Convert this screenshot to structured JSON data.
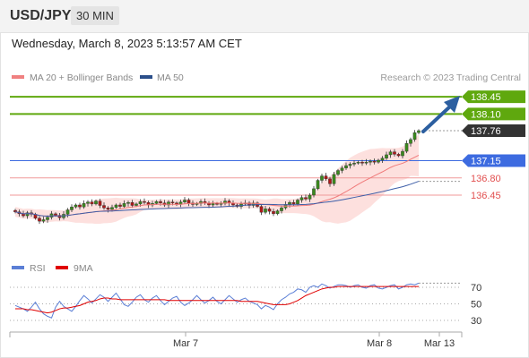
{
  "header": {
    "symbol": "USD/JPY",
    "timeframe": "30 MIN"
  },
  "datetime": "Wednesday, March 8, 2023 5:13:57 AM CET",
  "legend": {
    "ma20_label": "MA 20 + Bollinger Bands",
    "ma50_label": "MA 50",
    "source": "Research © 2023 Trading Central"
  },
  "rsi_legend": {
    "rsi": "RSI",
    "ma": "9MA"
  },
  "colors": {
    "green": "#5fa80e",
    "blue": "#3d6be0",
    "red": "#e25050",
    "dark": "#333333",
    "arrow": "#2c5fa0"
  },
  "chart_data": [
    {
      "type": "candlestick",
      "title": "USD/JPY",
      "price_levels": [
        {
          "value": 138.45,
          "label": "138.45",
          "kind": "resistance"
        },
        {
          "value": 138.1,
          "label": "138.10",
          "kind": "resistance"
        },
        {
          "value": 137.76,
          "label": "137.76",
          "kind": "last"
        },
        {
          "value": 137.15,
          "label": "137.15",
          "kind": "pivot"
        },
        {
          "value": 136.8,
          "label": "136.80",
          "kind": "support"
        },
        {
          "value": 136.45,
          "label": "136.45",
          "kind": "support"
        }
      ],
      "x_ticks": [
        "Mar 7",
        "Mar 8",
        "Mar 13"
      ],
      "series": [
        {
          "name": "MA 20 + Bollinger Bands"
        },
        {
          "name": "MA 50"
        }
      ],
      "closes": [
        136.11,
        136.07,
        136.03,
        136.09,
        136.06,
        135.98,
        135.92,
        135.95,
        136.0,
        136.07,
        136.04,
        135.99,
        136.06,
        136.15,
        136.21,
        136.25,
        136.21,
        136.28,
        136.31,
        136.27,
        136.33,
        136.24,
        136.19,
        136.16,
        136.2,
        136.25,
        136.22,
        136.28,
        136.3,
        136.24,
        136.27,
        136.32,
        136.3,
        136.25,
        136.28,
        136.32,
        136.29,
        136.25,
        136.31,
        136.29,
        136.26,
        136.31,
        136.35,
        136.29,
        136.26,
        136.28,
        136.32,
        136.29,
        136.25,
        136.28,
        136.27,
        136.28,
        136.33,
        136.29,
        136.25,
        136.22,
        136.27,
        136.29,
        136.24,
        136.29,
        136.22,
        136.1,
        136.17,
        136.12,
        136.07,
        136.13,
        136.19,
        136.26,
        136.3,
        136.27,
        136.35,
        136.4,
        136.37,
        136.45,
        136.58,
        136.75,
        136.84,
        136.78,
        136.68,
        136.87,
        136.95,
        137.0,
        137.05,
        137.08,
        137.1,
        137.12,
        137.1,
        137.12,
        137.14,
        137.12,
        137.16,
        137.2,
        137.27,
        137.33,
        137.28,
        137.25,
        137.34,
        137.5,
        137.58,
        137.72,
        137.76
      ],
      "rsi": {
        "levels": [
          30,
          50,
          70
        ],
        "values": [
          48,
          46,
          44,
          41,
          46,
          52,
          44,
          38,
          35,
          33,
          46,
          53,
          47,
          44,
          41,
          47,
          54,
          60,
          56,
          51,
          56,
          61,
          58,
          53,
          58,
          63,
          56,
          49,
          47,
          52,
          58,
          61,
          55,
          52,
          57,
          60,
          54,
          49,
          53,
          57,
          59,
          52,
          48,
          51,
          55,
          60,
          55,
          51,
          54,
          58,
          53,
          50,
          55,
          60,
          56,
          52,
          55,
          57,
          53,
          51,
          49,
          44,
          48,
          46,
          43,
          50,
          55,
          58,
          62,
          64,
          68,
          67,
          64,
          70,
          72,
          70,
          74,
          72,
          69,
          71,
          73,
          73,
          72,
          70,
          72,
          73,
          70,
          69,
          72,
          73,
          69,
          68,
          70,
          72,
          73,
          68,
          70,
          73,
          74,
          73,
          75
        ],
        "ma9": [
          44,
          44,
          44,
          43,
          43,
          42,
          41,
          40,
          39,
          40,
          42,
          44,
          45,
          45,
          46,
          47,
          48,
          50,
          52,
          53,
          54,
          56,
          57,
          57,
          56,
          56,
          55,
          55,
          55,
          55,
          55,
          55,
          55,
          55,
          55,
          55,
          55,
          55,
          54,
          54,
          54,
          54,
          54,
          54,
          54,
          54,
          54,
          54,
          54,
          54,
          54,
          54,
          54,
          54,
          54,
          54,
          53,
          53,
          53,
          53,
          53,
          52,
          51,
          50,
          49,
          49,
          49,
          49,
          50,
          52,
          54,
          57,
          60,
          62,
          64,
          66,
          68,
          69,
          70,
          70,
          71,
          71,
          71,
          71,
          71,
          71,
          71,
          71,
          71,
          71,
          71,
          71,
          71,
          71,
          71,
          71,
          71,
          71,
          71,
          71,
          71
        ]
      }
    }
  ]
}
